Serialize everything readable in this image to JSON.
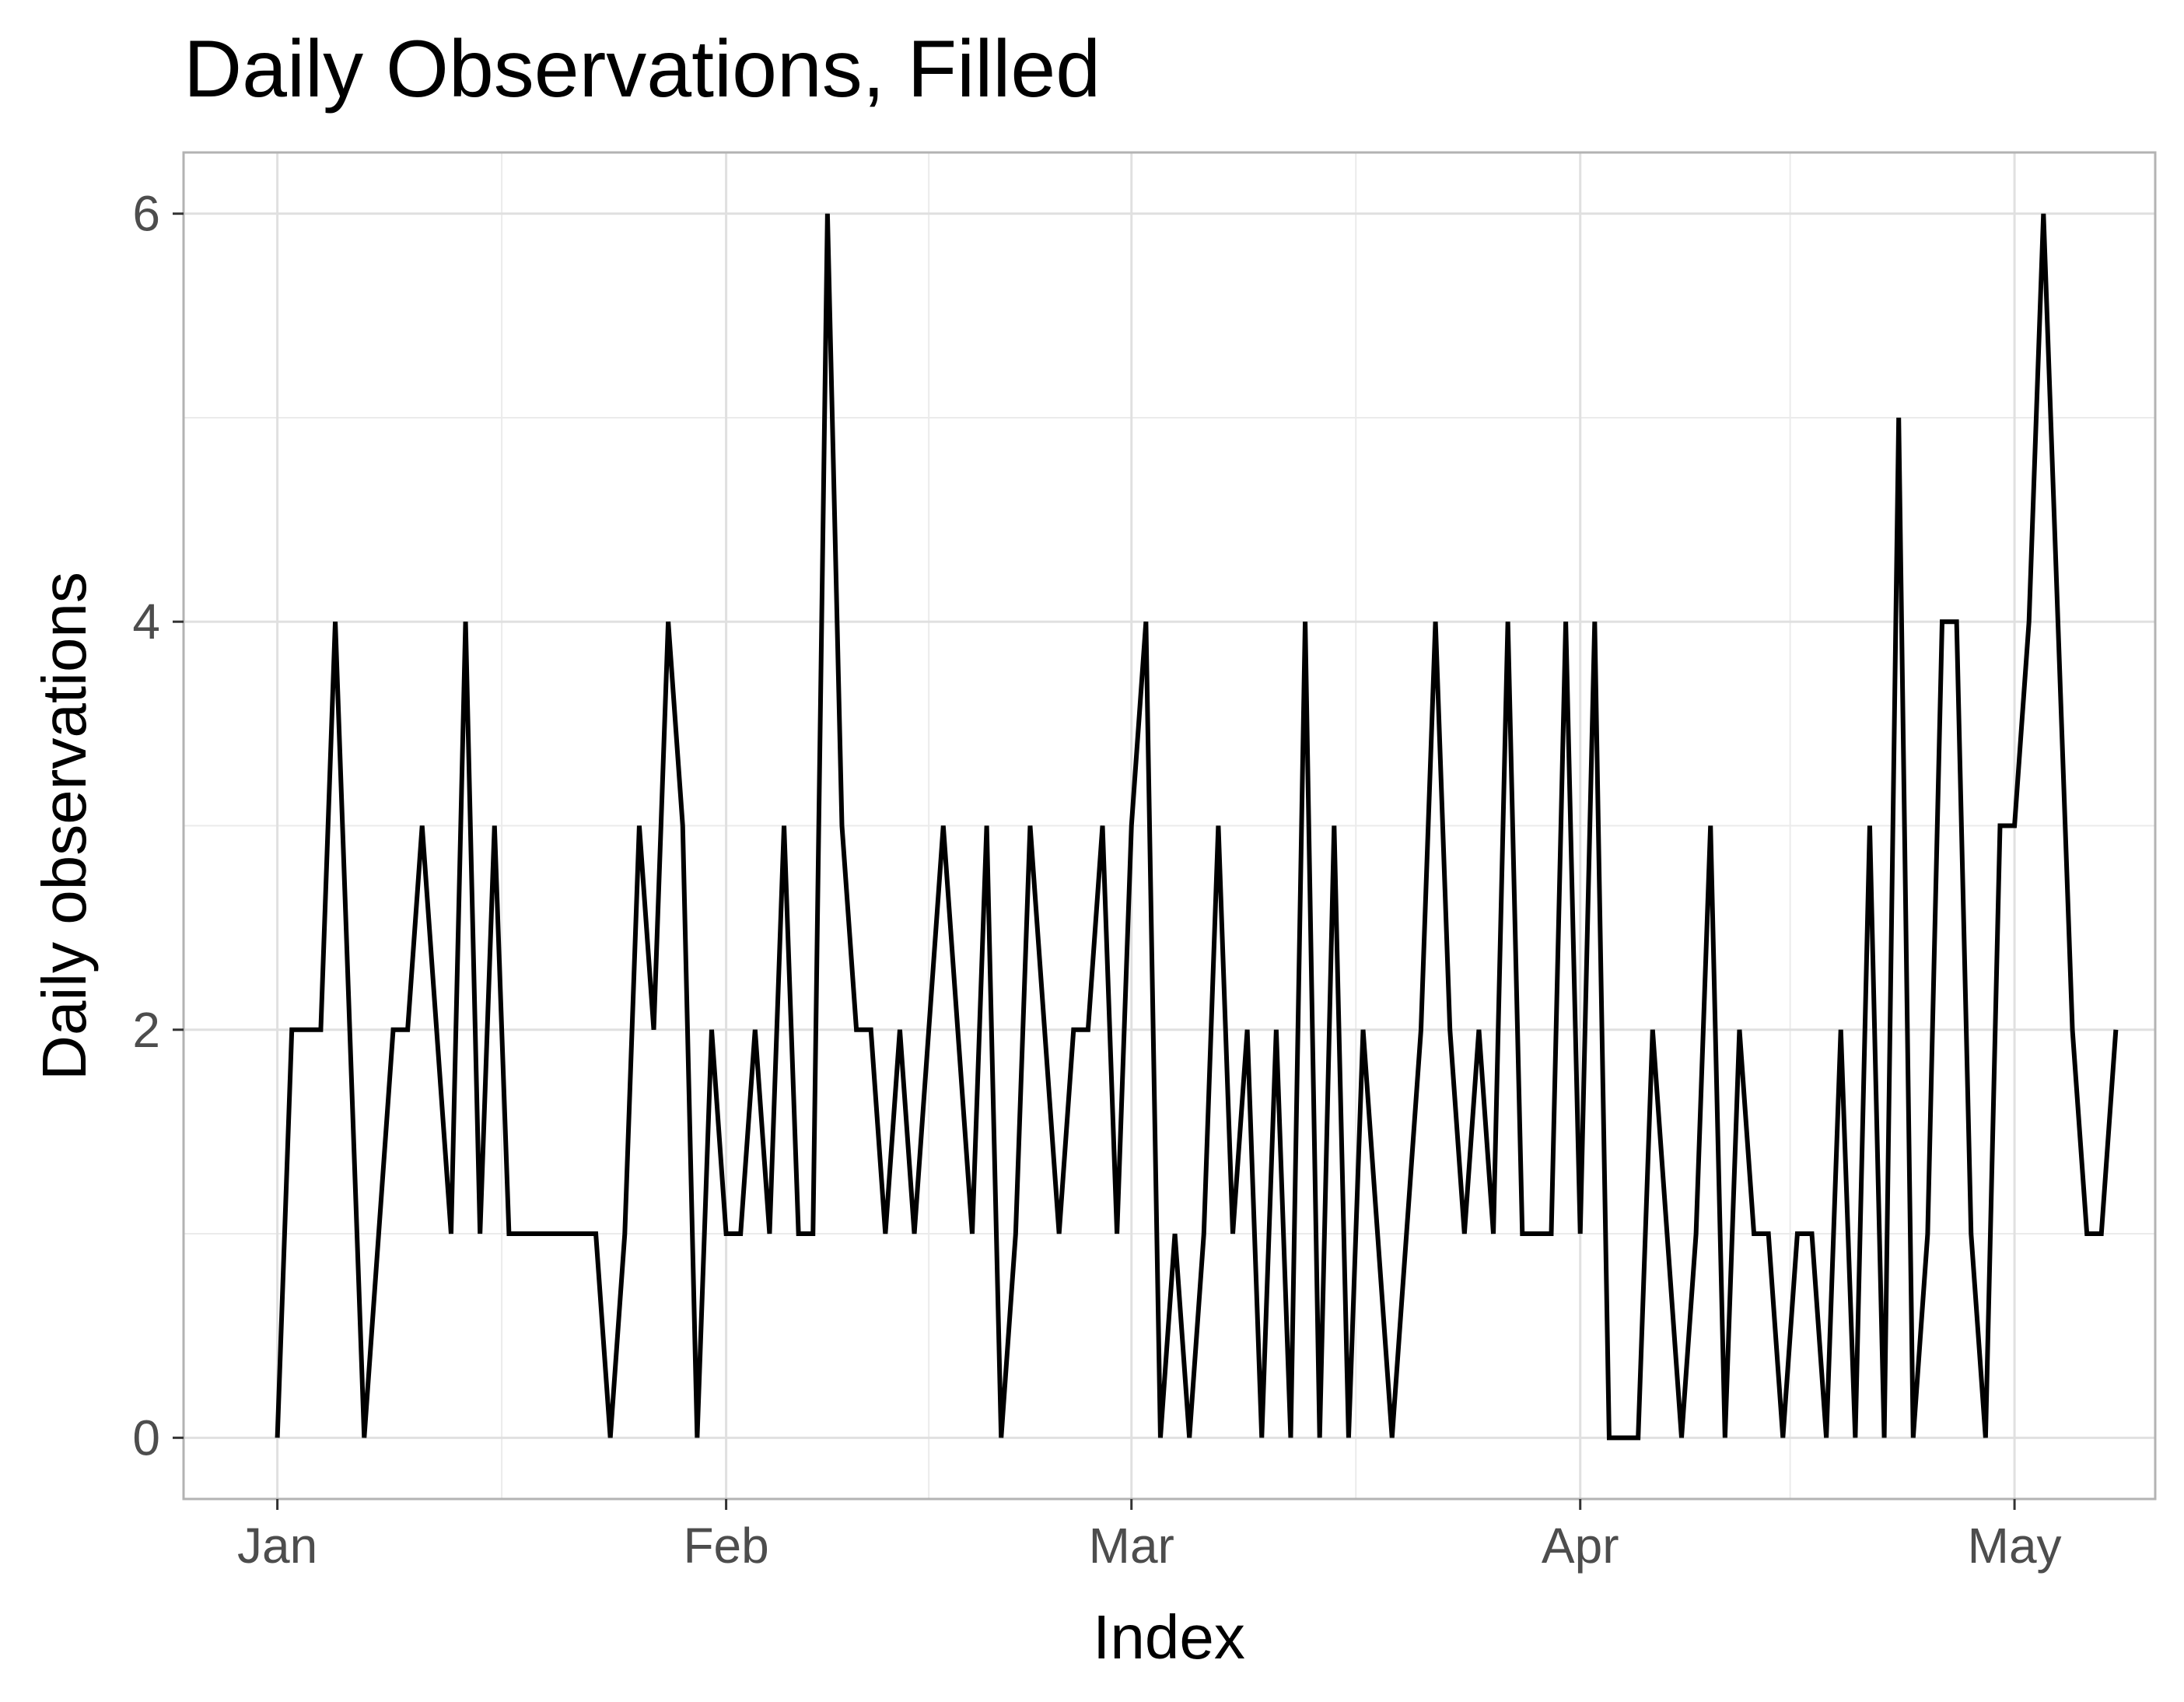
{
  "chart_data": {
    "type": "line",
    "title": "Daily Observations, Filled",
    "xlabel": "Index",
    "ylabel": "Daily observations",
    "x_unit": "day of year (Jan 1 = 1)",
    "xlim": [
      -5.48,
      130.72
    ],
    "ylim": [
      -0.3,
      6.3
    ],
    "x_ticks": [
      {
        "label": "Jan",
        "day": 1
      },
      {
        "label": "Feb",
        "day": 32
      },
      {
        "label": "Mar",
        "day": 60
      },
      {
        "label": "Apr",
        "day": 91
      },
      {
        "label": "May",
        "day": 121
      }
    ],
    "x_minor_ticks": [
      16.5,
      46,
      75.5,
      105.5
    ],
    "y_ticks": [
      0,
      2,
      4,
      6
    ],
    "y_minor_ticks": [
      1,
      3,
      5
    ],
    "grid": true,
    "colors": {
      "line": "#000000",
      "grid": "#ebebeb",
      "panel_border": "#b3b3b3",
      "tick_label": "#4d4d4d"
    },
    "series": [
      {
        "name": "Daily observations",
        "x_start_day": 1,
        "values": [
          0,
          2,
          2,
          2,
          4,
          2,
          0,
          1,
          2,
          2,
          3,
          2,
          1,
          4,
          1,
          3,
          1,
          1,
          1,
          1,
          1,
          1,
          1,
          0,
          1,
          3,
          2,
          4,
          3,
          0,
          2,
          1,
          1,
          2,
          1,
          3,
          1,
          1,
          6,
          3,
          2,
          2,
          1,
          2,
          1,
          2,
          3,
          2,
          1,
          3,
          0,
          1,
          3,
          2,
          1,
          2,
          2,
          3,
          1,
          3,
          4,
          0,
          1,
          0,
          1,
          3,
          1,
          2,
          0,
          2,
          0,
          4,
          0,
          3,
          0,
          2,
          1,
          0,
          1,
          2,
          4,
          2,
          1,
          2,
          1,
          4,
          1,
          1,
          1,
          4,
          1,
          4,
          0,
          0,
          0,
          2,
          1,
          0,
          1,
          3,
          0,
          2,
          1,
          1,
          0,
          1,
          1,
          0,
          2,
          0,
          3,
          0,
          5,
          0,
          1,
          4,
          4,
          1,
          0,
          3,
          3,
          4,
          6,
          4,
          2,
          1,
          1,
          2
        ]
      }
    ]
  }
}
